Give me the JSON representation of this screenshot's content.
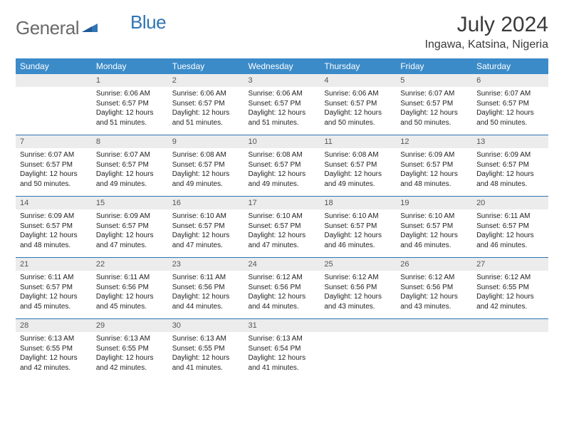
{
  "brand": {
    "part1": "General",
    "part2": "Blue"
  },
  "title": "July 2024",
  "location": "Ingawa, Katsina, Nigeria",
  "colors": {
    "header_bg": "#3b8bc9",
    "header_text": "#ffffff",
    "rule": "#2f74b5",
    "daynum_bg": "#ececec",
    "logo_gray": "#6a6a6a",
    "logo_blue": "#2f74b5"
  },
  "day_names": [
    "Sunday",
    "Monday",
    "Tuesday",
    "Wednesday",
    "Thursday",
    "Friday",
    "Saturday"
  ],
  "weeks": [
    [
      {
        "n": "",
        "lines": []
      },
      {
        "n": "1",
        "lines": [
          "Sunrise: 6:06 AM",
          "Sunset: 6:57 PM",
          "Daylight: 12 hours and 51 minutes."
        ]
      },
      {
        "n": "2",
        "lines": [
          "Sunrise: 6:06 AM",
          "Sunset: 6:57 PM",
          "Daylight: 12 hours and 51 minutes."
        ]
      },
      {
        "n": "3",
        "lines": [
          "Sunrise: 6:06 AM",
          "Sunset: 6:57 PM",
          "Daylight: 12 hours and 51 minutes."
        ]
      },
      {
        "n": "4",
        "lines": [
          "Sunrise: 6:06 AM",
          "Sunset: 6:57 PM",
          "Daylight: 12 hours and 50 minutes."
        ]
      },
      {
        "n": "5",
        "lines": [
          "Sunrise: 6:07 AM",
          "Sunset: 6:57 PM",
          "Daylight: 12 hours and 50 minutes."
        ]
      },
      {
        "n": "6",
        "lines": [
          "Sunrise: 6:07 AM",
          "Sunset: 6:57 PM",
          "Daylight: 12 hours and 50 minutes."
        ]
      }
    ],
    [
      {
        "n": "7",
        "lines": [
          "Sunrise: 6:07 AM",
          "Sunset: 6:57 PM",
          "Daylight: 12 hours and 50 minutes."
        ]
      },
      {
        "n": "8",
        "lines": [
          "Sunrise: 6:07 AM",
          "Sunset: 6:57 PM",
          "Daylight: 12 hours and 49 minutes."
        ]
      },
      {
        "n": "9",
        "lines": [
          "Sunrise: 6:08 AM",
          "Sunset: 6:57 PM",
          "Daylight: 12 hours and 49 minutes."
        ]
      },
      {
        "n": "10",
        "lines": [
          "Sunrise: 6:08 AM",
          "Sunset: 6:57 PM",
          "Daylight: 12 hours and 49 minutes."
        ]
      },
      {
        "n": "11",
        "lines": [
          "Sunrise: 6:08 AM",
          "Sunset: 6:57 PM",
          "Daylight: 12 hours and 49 minutes."
        ]
      },
      {
        "n": "12",
        "lines": [
          "Sunrise: 6:09 AM",
          "Sunset: 6:57 PM",
          "Daylight: 12 hours and 48 minutes."
        ]
      },
      {
        "n": "13",
        "lines": [
          "Sunrise: 6:09 AM",
          "Sunset: 6:57 PM",
          "Daylight: 12 hours and 48 minutes."
        ]
      }
    ],
    [
      {
        "n": "14",
        "lines": [
          "Sunrise: 6:09 AM",
          "Sunset: 6:57 PM",
          "Daylight: 12 hours and 48 minutes."
        ]
      },
      {
        "n": "15",
        "lines": [
          "Sunrise: 6:09 AM",
          "Sunset: 6:57 PM",
          "Daylight: 12 hours and 47 minutes."
        ]
      },
      {
        "n": "16",
        "lines": [
          "Sunrise: 6:10 AM",
          "Sunset: 6:57 PM",
          "Daylight: 12 hours and 47 minutes."
        ]
      },
      {
        "n": "17",
        "lines": [
          "Sunrise: 6:10 AM",
          "Sunset: 6:57 PM",
          "Daylight: 12 hours and 47 minutes."
        ]
      },
      {
        "n": "18",
        "lines": [
          "Sunrise: 6:10 AM",
          "Sunset: 6:57 PM",
          "Daylight: 12 hours and 46 minutes."
        ]
      },
      {
        "n": "19",
        "lines": [
          "Sunrise: 6:10 AM",
          "Sunset: 6:57 PM",
          "Daylight: 12 hours and 46 minutes."
        ]
      },
      {
        "n": "20",
        "lines": [
          "Sunrise: 6:11 AM",
          "Sunset: 6:57 PM",
          "Daylight: 12 hours and 46 minutes."
        ]
      }
    ],
    [
      {
        "n": "21",
        "lines": [
          "Sunrise: 6:11 AM",
          "Sunset: 6:57 PM",
          "Daylight: 12 hours and 45 minutes."
        ]
      },
      {
        "n": "22",
        "lines": [
          "Sunrise: 6:11 AM",
          "Sunset: 6:56 PM",
          "Daylight: 12 hours and 45 minutes."
        ]
      },
      {
        "n": "23",
        "lines": [
          "Sunrise: 6:11 AM",
          "Sunset: 6:56 PM",
          "Daylight: 12 hours and 44 minutes."
        ]
      },
      {
        "n": "24",
        "lines": [
          "Sunrise: 6:12 AM",
          "Sunset: 6:56 PM",
          "Daylight: 12 hours and 44 minutes."
        ]
      },
      {
        "n": "25",
        "lines": [
          "Sunrise: 6:12 AM",
          "Sunset: 6:56 PM",
          "Daylight: 12 hours and 43 minutes."
        ]
      },
      {
        "n": "26",
        "lines": [
          "Sunrise: 6:12 AM",
          "Sunset: 6:56 PM",
          "Daylight: 12 hours and 43 minutes."
        ]
      },
      {
        "n": "27",
        "lines": [
          "Sunrise: 6:12 AM",
          "Sunset: 6:55 PM",
          "Daylight: 12 hours and 42 minutes."
        ]
      }
    ],
    [
      {
        "n": "28",
        "lines": [
          "Sunrise: 6:13 AM",
          "Sunset: 6:55 PM",
          "Daylight: 12 hours and 42 minutes."
        ]
      },
      {
        "n": "29",
        "lines": [
          "Sunrise: 6:13 AM",
          "Sunset: 6:55 PM",
          "Daylight: 12 hours and 42 minutes."
        ]
      },
      {
        "n": "30",
        "lines": [
          "Sunrise: 6:13 AM",
          "Sunset: 6:55 PM",
          "Daylight: 12 hours and 41 minutes."
        ]
      },
      {
        "n": "31",
        "lines": [
          "Sunrise: 6:13 AM",
          "Sunset: 6:54 PM",
          "Daylight: 12 hours and 41 minutes."
        ]
      },
      {
        "n": "",
        "lines": []
      },
      {
        "n": "",
        "lines": []
      },
      {
        "n": "",
        "lines": []
      }
    ]
  ]
}
